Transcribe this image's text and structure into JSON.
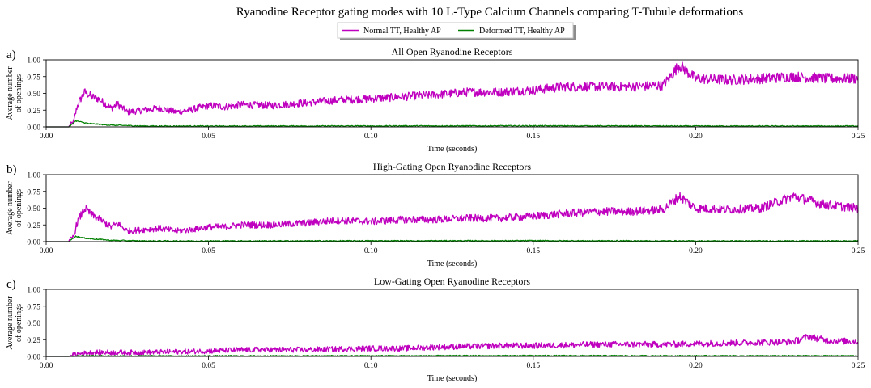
{
  "figure": {
    "title": "Ryanodine Receptor gating modes with 10 L-Type Calcium Channels comparing T-Tubule deformations"
  },
  "legend": {
    "placement": "top-center",
    "entries": [
      {
        "label": "Normal TT, Healthy AP",
        "color": "#bf00bf"
      },
      {
        "label": "Deformed TT, Healthy AP",
        "color": "#008000"
      }
    ]
  },
  "chart_data": [
    {
      "type": "line",
      "panel_label": "a)",
      "title": "All Open Ryanodine Receptors",
      "xlabel": "Time (seconds)",
      "ylabel": [
        "Average number",
        "of openings"
      ],
      "xlim": [
        0,
        0.25
      ],
      "ylim": [
        0,
        1.0
      ],
      "xticks": [
        "0.00",
        "0.05",
        "0.10",
        "0.15",
        "0.20",
        "0.25"
      ],
      "yticks": [
        "0.00",
        "0.25",
        "0.50",
        "0.75",
        "1.00"
      ],
      "grid": false,
      "series": [
        {
          "name": "Normal TT, Healthy AP",
          "color": "#bf00bf",
          "x": [
            0,
            0.007,
            0.0085,
            0.0095,
            0.011,
            0.012,
            0.014,
            0.016,
            0.018,
            0.02,
            0.022,
            0.025,
            0.03,
            0.035,
            0.04,
            0.045,
            0.05,
            0.055,
            0.06,
            0.07,
            0.08,
            0.09,
            0.1,
            0.11,
            0.12,
            0.13,
            0.14,
            0.15,
            0.16,
            0.17,
            0.18,
            0.19,
            0.195,
            0.2,
            0.21,
            0.22,
            0.23,
            0.24,
            0.25
          ],
          "y": [
            0,
            0,
            0.08,
            0.3,
            0.45,
            0.52,
            0.45,
            0.42,
            0.35,
            0.28,
            0.34,
            0.22,
            0.25,
            0.28,
            0.22,
            0.26,
            0.32,
            0.3,
            0.33,
            0.32,
            0.36,
            0.4,
            0.42,
            0.45,
            0.48,
            0.52,
            0.52,
            0.55,
            0.6,
            0.6,
            0.6,
            0.62,
            0.92,
            0.72,
            0.7,
            0.72,
            0.75,
            0.72,
            0.72
          ]
        },
        {
          "name": "Deformed TT, Healthy AP",
          "color": "#008000",
          "x": [
            0,
            0.007,
            0.008,
            0.009,
            0.011,
            0.013,
            0.016,
            0.02,
            0.025,
            0.03,
            0.05,
            0.1,
            0.15,
            0.2,
            0.25
          ],
          "y": [
            0,
            0,
            0.04,
            0.09,
            0.07,
            0.05,
            0.04,
            0.025,
            0.02,
            0.012,
            0.012,
            0.014,
            0.016,
            0.012,
            0.012
          ]
        }
      ]
    },
    {
      "type": "line",
      "panel_label": "b)",
      "title": "High-Gating Open Ryanodine Receptors",
      "xlabel": "Time (seconds)",
      "ylabel": [
        "Average number",
        "of openings"
      ],
      "xlim": [
        0,
        0.25
      ],
      "ylim": [
        0,
        1.0
      ],
      "xticks": [
        "0.00",
        "0.05",
        "0.10",
        "0.15",
        "0.20",
        "0.25"
      ],
      "yticks": [
        "0.00",
        "0.25",
        "0.50",
        "0.75",
        "1.00"
      ],
      "grid": false,
      "series": [
        {
          "name": "Normal TT, Healthy AP",
          "color": "#bf00bf",
          "x": [
            0,
            0.007,
            0.0085,
            0.0095,
            0.011,
            0.012,
            0.014,
            0.016,
            0.018,
            0.02,
            0.022,
            0.025,
            0.03,
            0.035,
            0.04,
            0.045,
            0.05,
            0.055,
            0.06,
            0.07,
            0.08,
            0.09,
            0.1,
            0.11,
            0.12,
            0.13,
            0.14,
            0.15,
            0.16,
            0.17,
            0.18,
            0.19,
            0.195,
            0.2,
            0.21,
            0.22,
            0.23,
            0.24,
            0.25
          ],
          "y": [
            0,
            0,
            0.08,
            0.28,
            0.42,
            0.5,
            0.4,
            0.35,
            0.28,
            0.22,
            0.27,
            0.16,
            0.18,
            0.2,
            0.16,
            0.18,
            0.22,
            0.22,
            0.25,
            0.25,
            0.28,
            0.32,
            0.3,
            0.33,
            0.33,
            0.35,
            0.35,
            0.38,
            0.42,
            0.45,
            0.45,
            0.48,
            0.68,
            0.5,
            0.48,
            0.5,
            0.68,
            0.55,
            0.5
          ]
        },
        {
          "name": "Deformed TT, Healthy AP",
          "color": "#008000",
          "x": [
            0,
            0.007,
            0.008,
            0.009,
            0.011,
            0.013,
            0.016,
            0.02,
            0.025,
            0.03,
            0.05,
            0.1,
            0.15,
            0.2,
            0.25
          ],
          "y": [
            0,
            0,
            0.04,
            0.08,
            0.06,
            0.045,
            0.035,
            0.02,
            0.015,
            0.01,
            0.01,
            0.012,
            0.014,
            0.01,
            0.01
          ]
        }
      ]
    },
    {
      "type": "line",
      "panel_label": "c)",
      "title": "Low-Gating Open Ryanodine Receptors",
      "xlabel": "Time (seconds)",
      "ylabel": [
        "Average number",
        "of openings"
      ],
      "xlim": [
        0,
        0.25
      ],
      "ylim": [
        0,
        1.0
      ],
      "xticks": [
        "0.00",
        "0.05",
        "0.10",
        "0.15",
        "0.20",
        "0.25"
      ],
      "yticks": [
        "0.00",
        "0.25",
        "0.50",
        "0.75",
        "1.00"
      ],
      "grid": false,
      "series": [
        {
          "name": "Normal TT, Healthy AP",
          "color": "#bf00bf",
          "x": [
            0,
            0.007,
            0.01,
            0.015,
            0.02,
            0.03,
            0.04,
            0.05,
            0.06,
            0.07,
            0.08,
            0.09,
            0.1,
            0.11,
            0.12,
            0.13,
            0.14,
            0.15,
            0.16,
            0.17,
            0.18,
            0.19,
            0.2,
            0.21,
            0.22,
            0.23,
            0.235,
            0.24,
            0.25
          ],
          "y": [
            0,
            0,
            0.04,
            0.06,
            0.06,
            0.06,
            0.07,
            0.08,
            0.1,
            0.1,
            0.1,
            0.11,
            0.12,
            0.12,
            0.14,
            0.15,
            0.16,
            0.16,
            0.17,
            0.18,
            0.18,
            0.18,
            0.19,
            0.2,
            0.21,
            0.22,
            0.3,
            0.24,
            0.22
          ]
        },
        {
          "name": "Deformed TT, Healthy AP",
          "color": "#008000",
          "x": [
            0,
            0.007,
            0.009,
            0.012,
            0.02,
            0.05,
            0.1,
            0.15,
            0.2,
            0.25
          ],
          "y": [
            0,
            0,
            0.008,
            0.012,
            0.008,
            0.008,
            0.01,
            0.012,
            0.01,
            0.01
          ]
        }
      ]
    }
  ]
}
